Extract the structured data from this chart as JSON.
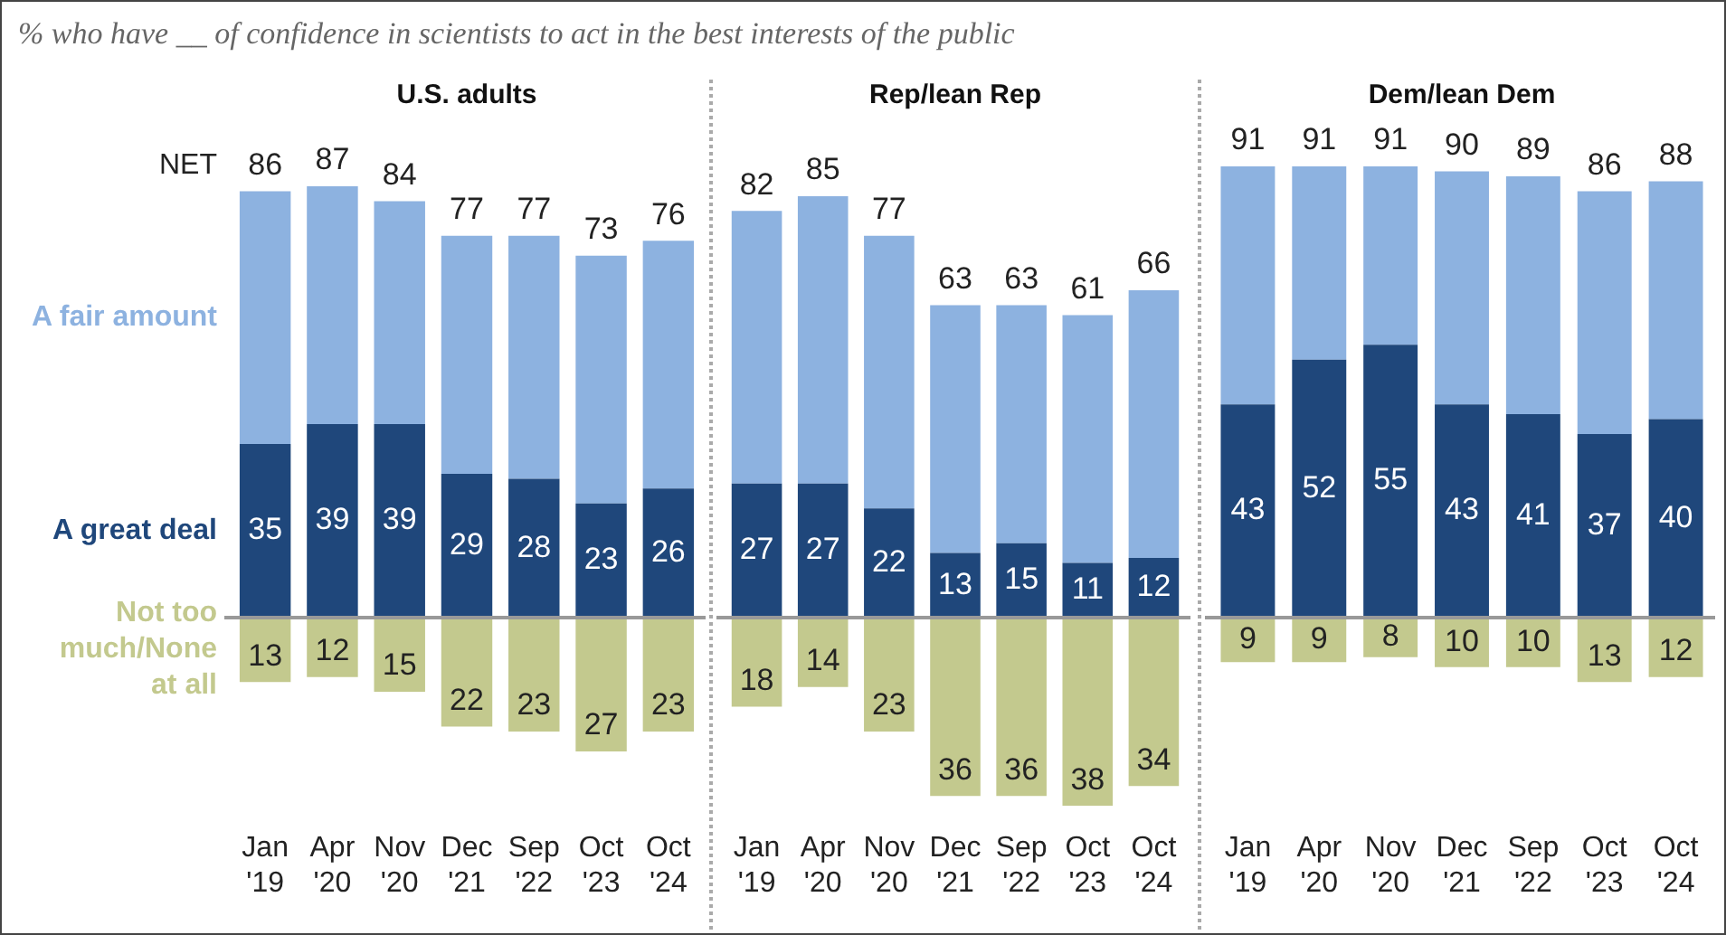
{
  "chart_data": [
    {
      "type": "bar",
      "title": "% who have __ of confidence in scientists to act in the best interests of the public",
      "subtitle": "U.S. adults",
      "categories": [
        "Jan '19",
        "Apr '20",
        "Nov '20",
        "Dec '21",
        "Sep '22",
        "Oct '23",
        "Oct '24"
      ],
      "stacked": true,
      "tick_labels": "x",
      "series": [
        {
          "name": "A great deal",
          "color": "#1f477b",
          "values": [
            35,
            39,
            39,
            29,
            28,
            23,
            26
          ],
          "value_labels": [
            "35",
            "39",
            "39",
            "29",
            "28",
            "23",
            "26"
          ]
        },
        {
          "name": "A fair amount",
          "color": "#8db2e0",
          "values": [
            51,
            48,
            45,
            48,
            49,
            50,
            50
          ]
        },
        {
          "name": "Not too much/None at all",
          "color": "#c3c98e",
          "values": [
            -13,
            -12,
            -15,
            -22,
            -23,
            -27,
            -23
          ]
        }
      ],
      "annotations": [
        "NET",
        {
          "text": "86",
          "x": "Jan '19",
          "y": 86
        },
        {
          "text": "87",
          "x": "Apr '20",
          "y": 87
        },
        {
          "text": "84",
          "x": "Nov '20",
          "y": 84
        },
        {
          "text": "77",
          "x": "Dec '21",
          "y": 77
        },
        {
          "text": "77",
          "x": "Sep '22",
          "y": 77
        },
        {
          "text": "73",
          "x": "Oct '23",
          "y": 73
        },
        {
          "text": "76",
          "x": "Oct '24",
          "y": 76
        },
        {
          "text": "13",
          "x": "Jan '19",
          "y": -13
        },
        {
          "text": "12",
          "x": "Apr '20",
          "y": -12
        },
        {
          "text": "15",
          "x": "Nov '20",
          "y": -15
        },
        {
          "text": "22",
          "x": "Dec '21",
          "y": -22
        },
        {
          "text": "23",
          "x": "Sep '22",
          "y": -23
        },
        {
          "text": "27",
          "x": "Oct '23",
          "y": -27
        },
        {
          "text": "23",
          "x": "Oct '24",
          "y": -23
        }
      ]
    },
    {
      "type": "bar",
      "subtitle": "Rep/lean Rep",
      "categories": [
        "Jan '19",
        "Apr '20",
        "Nov '20",
        "Dec '21",
        "Sep '22",
        "Oct '23",
        "Oct '24"
      ],
      "stacked": true,
      "tick_labels": "x",
      "series": [
        {
          "color": "#1f477b",
          "values": [
            27,
            27,
            22,
            13,
            15,
            11,
            12
          ],
          "value_labels": [
            "27",
            "27",
            "22",
            "13",
            "15",
            "11",
            "12"
          ]
        },
        {
          "color": "#8db2e0",
          "values": [
            55,
            58,
            55,
            50,
            48,
            50,
            54
          ]
        },
        {
          "color": "#c3c98e",
          "values": [
            -18,
            -14,
            -23,
            -36,
            -36,
            -38,
            -34
          ]
        }
      ],
      "annotations": [
        {
          "text": "82",
          "x": "Jan '19",
          "y": 82
        },
        {
          "text": "85",
          "x": "Apr '20",
          "y": 85
        },
        {
          "text": "77",
          "x": "Nov '20",
          "y": 77
        },
        {
          "text": "63",
          "x": "Dec '21",
          "y": 63
        },
        {
          "text": "63",
          "x": "Sep '22",
          "y": 63
        },
        {
          "text": "61",
          "x": "Oct '23",
          "y": 61
        },
        {
          "text": "66",
          "x": "Oct '24",
          "y": 66
        },
        {
          "text": "18",
          "x": "Jan '19",
          "y": -18
        },
        {
          "text": "14",
          "x": "Apr '20",
          "y": -14
        },
        {
          "text": "23",
          "x": "Nov '20",
          "y": -23
        },
        {
          "text": "36",
          "x": "Dec '21",
          "y": -36
        },
        {
          "text": "36",
          "x": "Sep '22",
          "y": -36
        },
        {
          "text": "38",
          "x": "Oct '23",
          "y": -38
        },
        {
          "text": "34",
          "x": "Oct '24",
          "y": -34
        }
      ]
    },
    {
      "type": "bar",
      "subtitle": "Dem/lean Dem",
      "categories": [
        "Jan '19",
        "Apr '20",
        "Nov '20",
        "Dec '21",
        "Sep '22",
        "Oct '23",
        "Oct '24"
      ],
      "stacked": true,
      "tick_labels": "x",
      "series": [
        {
          "color": "#1f477b",
          "values": [
            43,
            52,
            55,
            43,
            41,
            37,
            40
          ],
          "value_labels": [
            "43",
            "52",
            "55",
            "43",
            "41",
            "37",
            "40"
          ]
        },
        {
          "color": "#8db2e0",
          "values": [
            48,
            39,
            36,
            47,
            48,
            49,
            48
          ]
        },
        {
          "color": "#c3c98e",
          "values": [
            -9,
            -9,
            -8,
            -10,
            -10,
            -13,
            -12
          ]
        }
      ],
      "annotations": [
        {
          "text": "91",
          "x": "Jan '19",
          "y": 91
        },
        {
          "text": "91",
          "x": "Apr '20",
          "y": 91
        },
        {
          "text": "91",
          "x": "Nov '20",
          "y": 91
        },
        {
          "text": "90",
          "x": "Dec '21",
          "y": 90
        },
        {
          "text": "89",
          "x": "Sep '22",
          "y": 89
        },
        {
          "text": "86",
          "x": "Oct '23",
          "y": 86
        },
        {
          "text": "88",
          "x": "Oct '24",
          "y": 88
        },
        {
          "text": "9",
          "x": "Jan '19",
          "y": -9
        },
        {
          "text": "9",
          "x": "Apr '20",
          "y": -9
        },
        {
          "text": "8",
          "x": "Nov '20",
          "y": -8
        },
        {
          "text": "10",
          "x": "Dec '21",
          "y": -10
        },
        {
          "text": "10",
          "x": "Sep '22",
          "y": -10
        },
        {
          "text": "13",
          "x": "Oct '23",
          "y": -13
        },
        {
          "text": "12",
          "x": "Oct '24",
          "y": -12
        }
      ]
    }
  ]
}
